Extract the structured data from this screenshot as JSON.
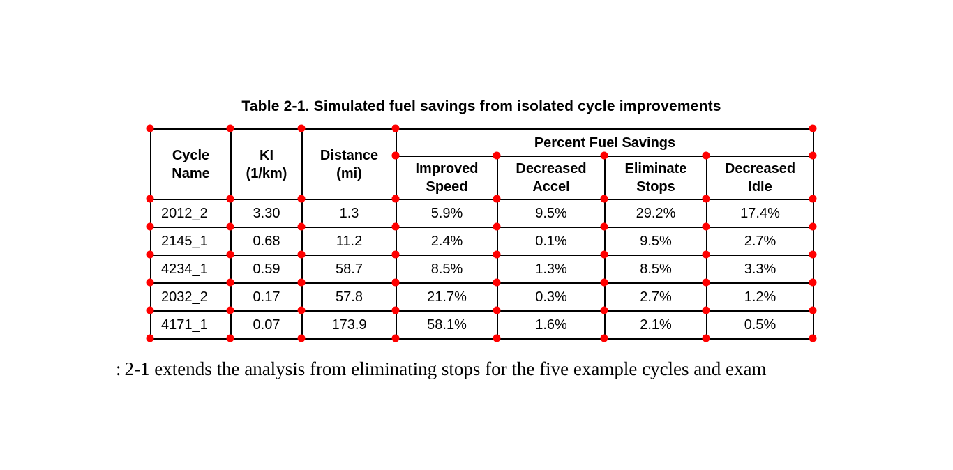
{
  "page": {
    "title": "Table 2-1. Simulated fuel savings from isolated cycle improvements",
    "body_fragment": ":",
    "body_text": "2-1 extends the analysis from eliminating stops for the five example cycles and exam"
  },
  "table": {
    "headers": {
      "cycle_name": "Cycle\nName",
      "ki": "KI\n(1/km)",
      "distance": "Distance\n(mi)",
      "group": "Percent Fuel Savings",
      "sub": [
        "Improved\nSpeed",
        "Decreased\nAccel",
        "Eliminate\nStops",
        "Decreased\nIdle"
      ]
    },
    "rows": [
      [
        "2012_2",
        "3.30",
        "1.3",
        "5.9%",
        "9.5%",
        "29.2%",
        "17.4%"
      ],
      [
        "2145_1",
        "0.68",
        "11.2",
        "2.4%",
        "0.1%",
        "9.5%",
        "2.7%"
      ],
      [
        "4234_1",
        "0.59",
        "58.7",
        "8.5%",
        "1.3%",
        "8.5%",
        "3.3%"
      ],
      [
        "2032_2",
        "0.17",
        "57.8",
        "21.7%",
        "0.3%",
        "2.7%",
        "1.2%"
      ],
      [
        "4171_1",
        "0.07",
        "173.9",
        "58.1%",
        "1.6%",
        "2.1%",
        "0.5%"
      ]
    ]
  },
  "annotations": {
    "marker_color": "#ff0000"
  }
}
